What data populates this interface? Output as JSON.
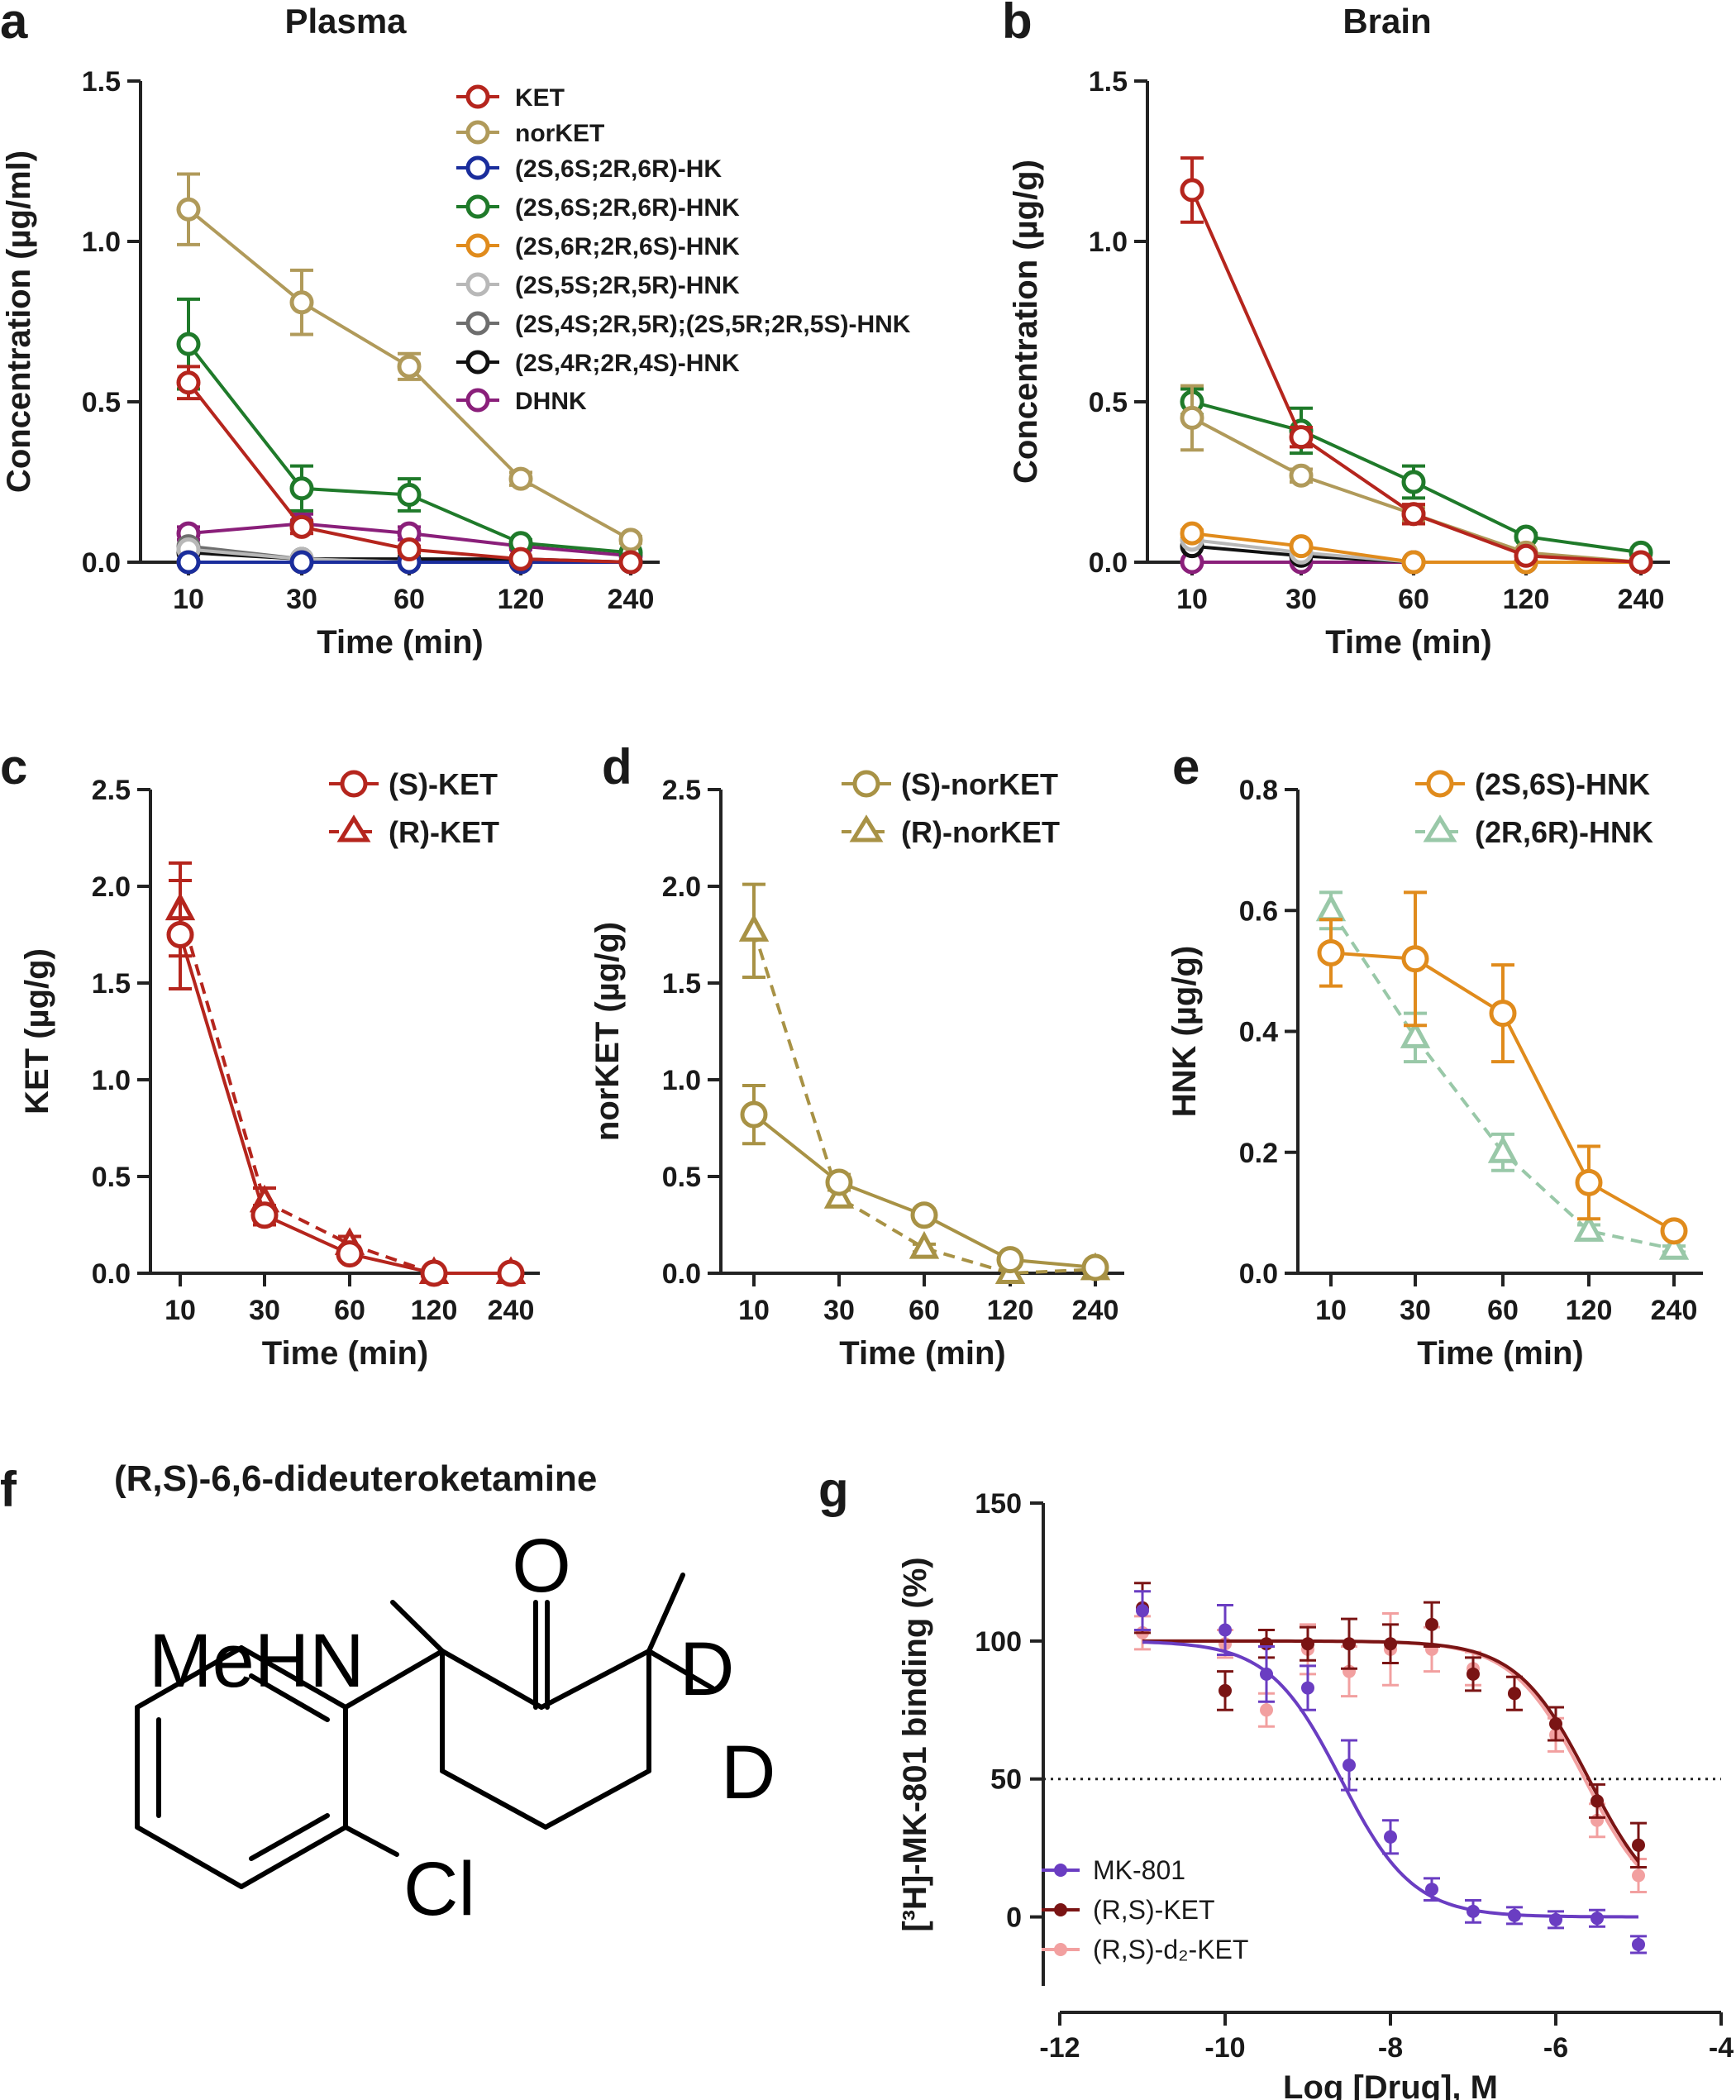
{
  "panel_labels": {
    "a": "a",
    "b": "b",
    "c": "c",
    "d": "d",
    "e": "e",
    "f": "f",
    "g": "g"
  },
  "chart_data": [
    {
      "id": "a",
      "type": "line",
      "title": "Plasma",
      "xlabel": "Time (min)",
      "ylabel": "Concentration (µg/ml)",
      "categories": [
        "10",
        "30",
        "60",
        "120",
        "240"
      ],
      "ylim": [
        0,
        1.5
      ],
      "yticks": [
        "0.0",
        "0.5",
        "1.0",
        "1.5"
      ],
      "legend_position": "top-right",
      "series": [
        {
          "name": "KET",
          "color": "#b5251d",
          "marker": "circle",
          "dash": false,
          "values": [
            0.56,
            0.11,
            0.04,
            0.01,
            0.0
          ],
          "errors": [
            0.05,
            0.02,
            0.01,
            0.005,
            0.0
          ]
        },
        {
          "name": "norKET",
          "color": "#b09a5a",
          "marker": "circle",
          "dash": false,
          "values": [
            1.1,
            0.81,
            0.61,
            0.26,
            0.07
          ],
          "errors": [
            0.11,
            0.1,
            0.04,
            0.02,
            0.01
          ]
        },
        {
          "name": "(2S,6S;2R,6R)-HK",
          "color": "#1a2d9c",
          "marker": "circle",
          "dash": false,
          "values": [
            0.0,
            0.0,
            0.0,
            0.0,
            0.0
          ],
          "errors": [
            0,
            0,
            0,
            0,
            0
          ]
        },
        {
          "name": "(2S,6S;2R,6R)-HNK",
          "color": "#1f7a2a",
          "marker": "circle",
          "dash": false,
          "values": [
            0.68,
            0.23,
            0.21,
            0.06,
            0.03
          ],
          "errors": [
            0.14,
            0.07,
            0.05,
            0.01,
            0.005
          ]
        },
        {
          "name": "(2S,6R;2R,6S)-HNK",
          "color": "#e08b1c",
          "marker": "circle",
          "dash": false,
          "values": [
            0.0,
            0.0,
            0.0,
            0.0,
            0.0
          ],
          "errors": [
            0,
            0,
            0,
            0,
            0
          ]
        },
        {
          "name": "(2S,5S;2R,5R)-HNK",
          "color": "#b8b8b8",
          "marker": "circle",
          "dash": false,
          "values": [
            0.04,
            0.01,
            0.0,
            0.0,
            0.0
          ],
          "errors": [
            0,
            0,
            0,
            0,
            0
          ]
        },
        {
          "name": "(2S,4S;2R,5R);(2S,5R;2R,5S)-HNK",
          "color": "#6e6e6e",
          "marker": "circle",
          "dash": false,
          "values": [
            0.05,
            0.01,
            0.0,
            0.0,
            0.0
          ],
          "errors": [
            0,
            0,
            0,
            0,
            0
          ]
        },
        {
          "name": "(2S,4R;2R,4S)-HNK",
          "color": "#111111",
          "marker": "circle",
          "dash": false,
          "values": [
            0.03,
            0.01,
            0.01,
            0.01,
            0.0
          ],
          "errors": [
            0,
            0,
            0,
            0,
            0
          ]
        },
        {
          "name": "DHNK",
          "color": "#8a1f7a",
          "marker": "circle",
          "dash": false,
          "values": [
            0.09,
            0.12,
            0.09,
            0.05,
            0.02
          ],
          "errors": [
            0.02,
            0.03,
            0.02,
            0.01,
            0.005
          ]
        }
      ]
    },
    {
      "id": "b",
      "type": "line",
      "title": "Brain",
      "xlabel": "Time (min)",
      "ylabel": "Concentration (µg/g)",
      "categories": [
        "10",
        "30",
        "60",
        "120",
        "240"
      ],
      "ylim": [
        0,
        1.5
      ],
      "yticks": [
        "0.0",
        "0.5",
        "1.0",
        "1.5"
      ],
      "series": [
        {
          "name": "KET",
          "color": "#b5251d",
          "marker": "circle",
          "dash": false,
          "values": [
            1.16,
            0.39,
            0.15,
            0.02,
            0.0
          ],
          "errors": [
            0.1,
            0.03,
            0.03,
            0.01,
            0.0
          ]
        },
        {
          "name": "norKET",
          "color": "#b09a5a",
          "marker": "circle",
          "dash": false,
          "values": [
            0.45,
            0.27,
            0.15,
            0.03,
            0.0
          ],
          "errors": [
            0.1,
            0.02,
            0.02,
            0.005,
            0.0
          ]
        },
        {
          "name": "(2S,6S;2R,6R)-HNK",
          "color": "#1f7a2a",
          "marker": "circle",
          "dash": false,
          "values": [
            0.5,
            0.41,
            0.25,
            0.08,
            0.03
          ],
          "errors": [
            0.04,
            0.07,
            0.05,
            0.01,
            0.005
          ]
        },
        {
          "name": "(2S,6R;2R,6S)-HNK",
          "color": "#e08b1c",
          "marker": "circle",
          "dash": false,
          "values": [
            0.09,
            0.05,
            0.0,
            0.0,
            0.0
          ],
          "errors": [
            0.01,
            0.005,
            0,
            0,
            0
          ]
        },
        {
          "name": "(2S,5S;2R,5R)-HNK",
          "color": "#b8b8b8",
          "marker": "circle",
          "dash": false,
          "values": [
            0.07,
            0.03,
            0.0,
            0.0,
            0.0
          ],
          "errors": [
            0,
            0,
            0,
            0,
            0
          ]
        },
        {
          "name": "(2S,4R;2R,4S)-HNK",
          "color": "#111111",
          "marker": "circle",
          "dash": false,
          "values": [
            0.05,
            0.02,
            0.0,
            0.0,
            0.0
          ],
          "errors": [
            0,
            0,
            0,
            0,
            0
          ]
        },
        {
          "name": "DHNK",
          "color": "#8a1f7a",
          "marker": "circle",
          "dash": false,
          "values": [
            0.0,
            0.0,
            0.0,
            0.0,
            0.0
          ],
          "errors": [
            0,
            0,
            0,
            0,
            0
          ]
        }
      ]
    },
    {
      "id": "c",
      "type": "line",
      "title": "",
      "xlabel": "Time (min)",
      "ylabel": "KET (µg/g)",
      "categories": [
        "10",
        "30",
        "60",
        "120",
        "240"
      ],
      "ylim": [
        0,
        2.5
      ],
      "yticks": [
        "0.0",
        "0.5",
        "1.0",
        "1.5",
        "2.0",
        "2.5"
      ],
      "legend_position": "top-right",
      "series": [
        {
          "name": "(S)-KET",
          "color": "#b5251d",
          "marker": "circle",
          "dash": false,
          "values": [
            1.75,
            0.3,
            0.1,
            0.0,
            0.0
          ],
          "errors": [
            0.28,
            0.05,
            0.03,
            0.0,
            0.0
          ]
        },
        {
          "name": "(R)-KET",
          "color": "#b5251d",
          "marker": "triangle",
          "dash": true,
          "values": [
            1.88,
            0.37,
            0.15,
            0.0,
            0.0
          ],
          "errors": [
            0.24,
            0.07,
            0.04,
            0.0,
            0.0
          ]
        }
      ]
    },
    {
      "id": "d",
      "type": "line",
      "title": "",
      "xlabel": "Time (min)",
      "ylabel": "norKET (µg/g)",
      "categories": [
        "10",
        "30",
        "60",
        "120",
        "240"
      ],
      "ylim": [
        0,
        2.5
      ],
      "yticks": [
        "0.0",
        "0.5",
        "1.0",
        "1.5",
        "2.0",
        "2.5"
      ],
      "legend_position": "top-right",
      "series": [
        {
          "name": "(S)-norKET",
          "color": "#a89245",
          "marker": "circle",
          "dash": false,
          "values": [
            0.82,
            0.47,
            0.3,
            0.07,
            0.03
          ],
          "errors": [
            0.15,
            0.04,
            0.03,
            0.01,
            0.005
          ]
        },
        {
          "name": "(R)-norKET",
          "color": "#a89245",
          "marker": "triangle",
          "dash": true,
          "values": [
            1.77,
            0.39,
            0.13,
            0.0,
            0.02
          ],
          "errors": [
            0.24,
            0.04,
            0.02,
            0.0,
            0.005
          ]
        }
      ]
    },
    {
      "id": "e",
      "type": "line",
      "title": "",
      "xlabel": "Time (min)",
      "ylabel": "HNK (µg/g)",
      "categories": [
        "10",
        "30",
        "60",
        "120",
        "240"
      ],
      "ylim": [
        0,
        0.8
      ],
      "yticks": [
        "0.0",
        "0.2",
        "0.4",
        "0.6",
        "0.8"
      ],
      "legend_position": "top-right",
      "series": [
        {
          "name": "(2S,6S)-HNK",
          "color": "#e08b1c",
          "marker": "circle",
          "dash": false,
          "values": [
            0.53,
            0.52,
            0.43,
            0.15,
            0.07
          ],
          "errors": [
            0.055,
            0.11,
            0.08,
            0.06,
            0.005
          ]
        },
        {
          "name": "(2R,6R)-HNK",
          "color": "#99c8a8",
          "marker": "triangle",
          "dash": true,
          "values": [
            0.6,
            0.39,
            0.2,
            0.07,
            0.04
          ],
          "errors": [
            0.03,
            0.04,
            0.03,
            0.01,
            0.005
          ]
        }
      ]
    },
    {
      "id": "g",
      "type": "scatter",
      "title": "",
      "xlabel": "Log [Drug], M",
      "ylabel": "[³H]-MK-801 binding (%)",
      "xlim": [
        -12,
        -4
      ],
      "ylim": [
        -25,
        150
      ],
      "xticks": [
        "-12",
        "-10",
        "-8",
        "-6",
        "-4"
      ],
      "yticks": [
        "0",
        "50",
        "100",
        "150"
      ],
      "reference_line_y": 50,
      "legend_position": "bottom-left",
      "series": [
        {
          "name": "MK-801",
          "color": "#6a3dc2",
          "x": [
            -11,
            -10,
            -9.5,
            -9,
            -8.5,
            -8,
            -7.5,
            -7,
            -6.5,
            -6,
            -5.5,
            -5
          ],
          "y": [
            111,
            104,
            88,
            83,
            55,
            29,
            10,
            2,
            0.5,
            -1,
            -0.5,
            -10
          ],
          "errors": [
            7,
            9,
            10,
            8,
            9,
            6,
            4,
            4,
            3,
            3,
            3,
            3
          ],
          "fit": {
            "top": 100,
            "bottom": 0,
            "log_ic50": -8.6,
            "hill": 1
          }
        },
        {
          "name": "(R,S)-KET",
          "color": "#7a1414",
          "x": [
            -11,
            -10,
            -9.5,
            -9,
            -8.5,
            -8,
            -7.5,
            -7,
            -6.5,
            -6,
            -5.5,
            -5
          ],
          "y": [
            112,
            82,
            99,
            99,
            99,
            99,
            106,
            88,
            81,
            70,
            42,
            26
          ],
          "errors": [
            9,
            7,
            5,
            6,
            9,
            7,
            8,
            6,
            6,
            6,
            6,
            8
          ],
          "fit": {
            "top": 100,
            "bottom": 0,
            "log_ic50": -5.6,
            "hill": 1
          }
        },
        {
          "name": "(R,S)-d₂-KET",
          "color": "#f2a0a0",
          "x": [
            -11,
            -10,
            -9.5,
            -9,
            -8.5,
            -8,
            -7.5,
            -7,
            -6.5,
            -6,
            -5.5,
            -5
          ],
          "y": [
            103,
            99,
            75,
            97,
            89,
            97,
            97,
            90,
            81,
            66,
            35,
            15
          ],
          "errors": [
            6,
            5,
            6,
            9,
            9,
            13,
            8,
            6,
            6,
            6,
            6,
            6
          ],
          "fit": {
            "top": 100,
            "bottom": 0,
            "log_ic50": -5.65,
            "hill": 1
          }
        }
      ]
    }
  ],
  "chemistry": {
    "title": "(R,S)-6,6-dideuteroketamine",
    "atoms": {
      "carbonyl_o": "O",
      "amine": "MeHN",
      "deuterium_1": "D",
      "deuterium_2": "D",
      "chlorine": "Cl"
    }
  }
}
